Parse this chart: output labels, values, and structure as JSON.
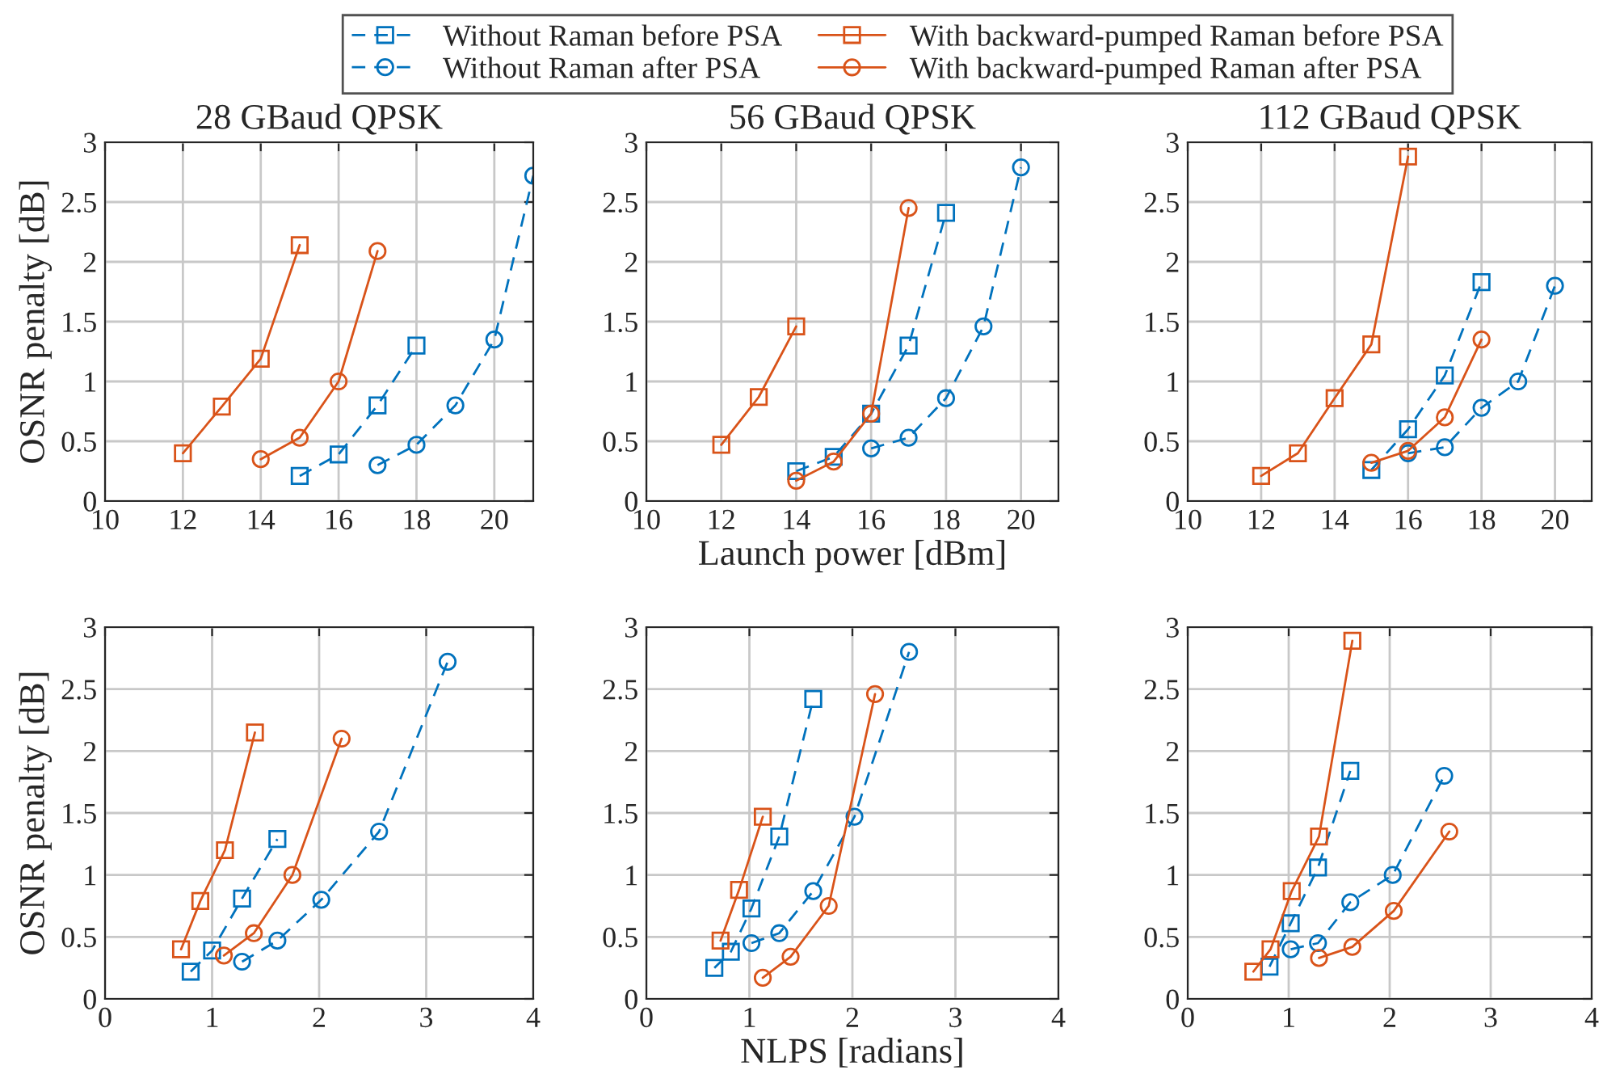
{
  "chart_data": [
    {
      "type": "line",
      "title": "28 GBaud QPSK",
      "ylabel": "OSNR penalty [dB]",
      "xlim": [
        10,
        21
      ],
      "xticks": [
        10,
        12,
        14,
        16,
        18,
        20
      ],
      "ylim": [
        0,
        3
      ],
      "yticks": [
        0,
        0.5,
        1,
        1.5,
        2,
        2.5,
        3
      ],
      "grid": true,
      "legend": "top",
      "series": [
        {
          "name": "Without Raman before PSA",
          "color": "#0072bd",
          "marker": "square",
          "line_style": "dashed",
          "x": [
            15,
            16,
            17,
            18
          ],
          "values": [
            0.21,
            0.39,
            0.8,
            1.3
          ]
        },
        {
          "name": "Without Raman after PSA",
          "color": "#0072bd",
          "marker": "circle",
          "line_style": "dashed",
          "x": [
            17,
            18,
            19,
            20,
            21
          ],
          "values": [
            0.3,
            0.47,
            0.8,
            1.35,
            2.72
          ]
        },
        {
          "name": "With backward-pumped Raman before PSA",
          "color": "#d95319",
          "marker": "square",
          "line_style": "solid",
          "x": [
            12,
            13,
            14,
            15
          ],
          "values": [
            0.4,
            0.79,
            1.19,
            2.14
          ]
        },
        {
          "name": "With backward-pumped Raman after PSA",
          "color": "#d95319",
          "marker": "circle",
          "line_style": "solid",
          "x": [
            14,
            15,
            16,
            17
          ],
          "values": [
            0.35,
            0.53,
            1.0,
            2.09
          ]
        }
      ]
    },
    {
      "type": "line",
      "title": "56 GBaud QPSK",
      "xlabel": "Launch power [dBm]",
      "xlim": [
        10,
        21
      ],
      "xticks": [
        10,
        12,
        14,
        16,
        18,
        20
      ],
      "ylim": [
        0,
        3
      ],
      "yticks": [
        0,
        0.5,
        1,
        1.5,
        2,
        2.5,
        3
      ],
      "grid": true,
      "series": [
        {
          "color": "#0072bd",
          "marker": "square",
          "line_style": "dashed",
          "x": [
            14,
            15,
            16,
            17,
            18
          ],
          "values": [
            0.25,
            0.37,
            0.73,
            1.3,
            2.41
          ]
        },
        {
          "color": "#0072bd",
          "marker": "circle",
          "line_style": "dashed",
          "x": [
            16,
            17,
            18,
            19,
            20
          ],
          "values": [
            0.44,
            0.53,
            0.86,
            1.46,
            2.79
          ]
        },
        {
          "color": "#d95319",
          "marker": "square",
          "line_style": "solid",
          "x": [
            12,
            13,
            14
          ],
          "values": [
            0.47,
            0.87,
            1.46
          ]
        },
        {
          "color": "#d95319",
          "marker": "circle",
          "line_style": "solid",
          "x": [
            14,
            15,
            16,
            17
          ],
          "values": [
            0.17,
            0.33,
            0.73,
            2.45
          ]
        }
      ]
    },
    {
      "type": "line",
      "title": "112 GBaud QPSK",
      "xlim": [
        10,
        21
      ],
      "xticks": [
        10,
        12,
        14,
        16,
        18,
        20
      ],
      "ylim": [
        0,
        3
      ],
      "yticks": [
        0,
        0.5,
        1,
        1.5,
        2,
        2.5,
        3
      ],
      "grid": true,
      "series": [
        {
          "color": "#0072bd",
          "marker": "square",
          "line_style": "dashed",
          "x": [
            15,
            16,
            17,
            18
          ],
          "values": [
            0.26,
            0.6,
            1.05,
            1.83
          ]
        },
        {
          "color": "#0072bd",
          "marker": "circle",
          "line_style": "dashed",
          "x": [
            16,
            17,
            18,
            19,
            20
          ],
          "values": [
            0.4,
            0.45,
            0.78,
            1.0,
            1.8
          ]
        },
        {
          "color": "#d95319",
          "marker": "square",
          "line_style": "solid",
          "x": [
            12,
            13,
            14,
            15,
            16
          ],
          "values": [
            0.21,
            0.4,
            0.86,
            1.31,
            2.88
          ]
        },
        {
          "color": "#d95319",
          "marker": "circle",
          "line_style": "solid",
          "x": [
            15,
            16,
            17,
            18
          ],
          "values": [
            0.32,
            0.42,
            0.7,
            1.35
          ]
        }
      ]
    },
    {
      "type": "line",
      "ylabel": "OSNR penalty [dB]",
      "xlim": [
        0,
        4
      ],
      "xticks": [
        0,
        1,
        2,
        3,
        4
      ],
      "ylim": [
        0,
        3
      ],
      "yticks": [
        0,
        0.5,
        1,
        1.5,
        2,
        2.5,
        3
      ],
      "grid": true,
      "series": [
        {
          "color": "#0072bd",
          "marker": "square",
          "line_style": "dashed",
          "x": [
            0.8,
            1.0,
            1.28,
            1.61
          ],
          "values": [
            0.22,
            0.39,
            0.81,
            1.29
          ]
        },
        {
          "color": "#0072bd",
          "marker": "circle",
          "line_style": "dashed",
          "x": [
            1.28,
            1.61,
            2.02,
            2.56,
            3.2
          ],
          "values": [
            0.3,
            0.47,
            0.8,
            1.35,
            2.72
          ]
        },
        {
          "color": "#d95319",
          "marker": "square",
          "line_style": "solid",
          "x": [
            0.71,
            0.89,
            1.12,
            1.4
          ],
          "values": [
            0.4,
            0.79,
            1.2,
            2.15
          ]
        },
        {
          "color": "#d95319",
          "marker": "circle",
          "line_style": "solid",
          "x": [
            1.11,
            1.39,
            1.75,
            2.21
          ],
          "values": [
            0.35,
            0.53,
            1.0,
            2.1
          ]
        }
      ]
    },
    {
      "type": "line",
      "xlabel": "NLPS [radians]",
      "xlim": [
        0,
        4
      ],
      "xticks": [
        0,
        1,
        2,
        3,
        4
      ],
      "ylim": [
        0,
        3
      ],
      "yticks": [
        0,
        0.5,
        1,
        1.5,
        2,
        2.5,
        3
      ],
      "grid": true,
      "series": [
        {
          "color": "#0072bd",
          "marker": "square",
          "line_style": "dashed",
          "x": [
            0.66,
            0.82,
            1.02,
            1.29,
            1.62
          ],
          "values": [
            0.25,
            0.38,
            0.73,
            1.31,
            2.42
          ]
        },
        {
          "color": "#0072bd",
          "marker": "circle",
          "line_style": "dashed",
          "x": [
            1.02,
            1.29,
            1.62,
            2.02,
            2.55
          ],
          "values": [
            0.45,
            0.53,
            0.87,
            1.47,
            2.8
          ]
        },
        {
          "color": "#d95319",
          "marker": "square",
          "line_style": "solid",
          "x": [
            0.72,
            0.9,
            1.13
          ],
          "values": [
            0.47,
            0.88,
            1.47
          ]
        },
        {
          "color": "#d95319",
          "marker": "circle",
          "line_style": "solid",
          "x": [
            1.13,
            1.4,
            1.77,
            2.22
          ],
          "values": [
            0.17,
            0.34,
            0.75,
            2.46
          ]
        }
      ]
    },
    {
      "type": "line",
      "xlim": [
        0,
        4
      ],
      "xticks": [
        0,
        1,
        2,
        3,
        4
      ],
      "ylim": [
        0,
        3
      ],
      "yticks": [
        0,
        0.5,
        1,
        1.5,
        2,
        2.5,
        3
      ],
      "grid": true,
      "series": [
        {
          "color": "#0072bd",
          "marker": "square",
          "line_style": "dashed",
          "x": [
            0.81,
            1.02,
            1.29,
            1.61
          ],
          "values": [
            0.26,
            0.61,
            1.06,
            1.84
          ]
        },
        {
          "color": "#0072bd",
          "marker": "circle",
          "line_style": "dashed",
          "x": [
            1.02,
            1.29,
            1.61,
            2.03,
            2.54
          ],
          "values": [
            0.4,
            0.45,
            0.78,
            1.0,
            1.8
          ]
        },
        {
          "color": "#d95319",
          "marker": "square",
          "line_style": "solid",
          "x": [
            0.65,
            0.82,
            1.03,
            1.3,
            1.63
          ],
          "values": [
            0.22,
            0.4,
            0.87,
            1.31,
            2.89
          ]
        },
        {
          "color": "#d95319",
          "marker": "circle",
          "line_style": "solid",
          "x": [
            1.3,
            1.63,
            2.04,
            2.59
          ],
          "values": [
            0.33,
            0.42,
            0.71,
            1.35
          ]
        }
      ]
    }
  ]
}
